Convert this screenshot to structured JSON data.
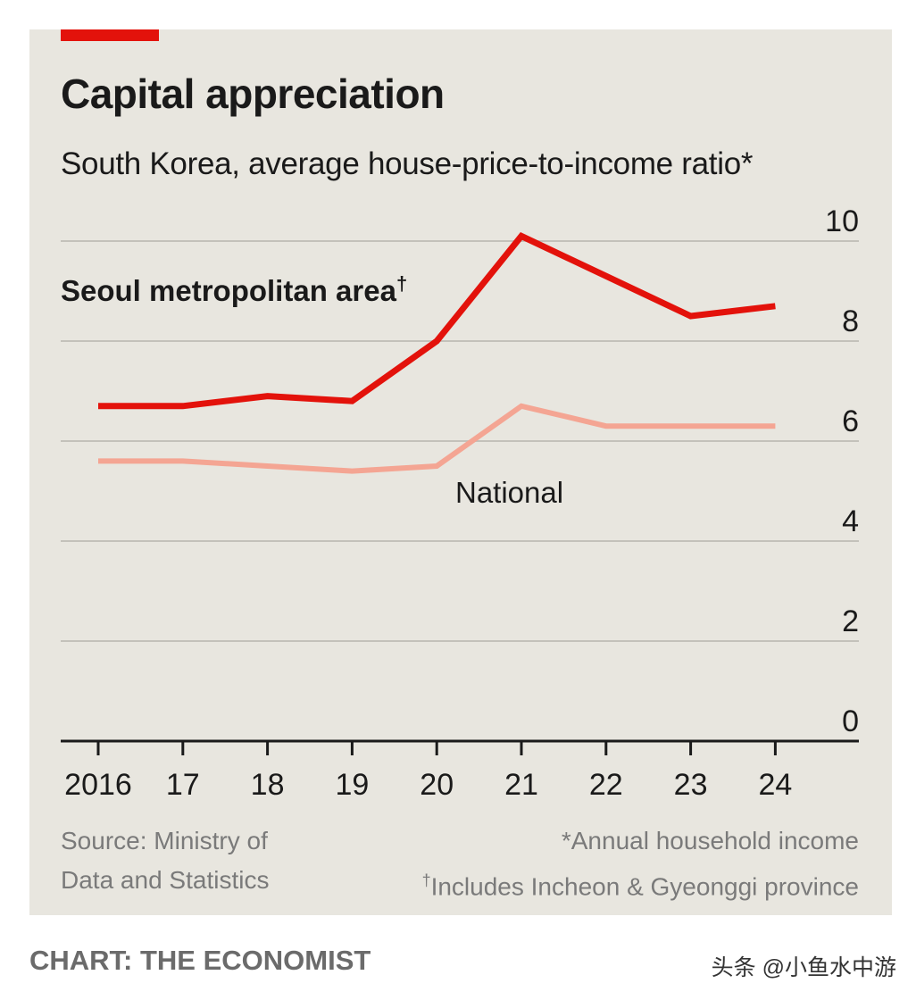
{
  "chart_data": {
    "type": "line",
    "title": "Capital appreciation",
    "subtitle": "South Korea, average house-price-to-income ratio*",
    "categories": [
      "2016",
      "17",
      "18",
      "19",
      "20",
      "21",
      "22",
      "23",
      "24"
    ],
    "ylim": [
      0,
      10
    ],
    "yticks": [
      "10",
      "8",
      "6",
      "4",
      "2",
      "0"
    ],
    "grid": true,
    "series": [
      {
        "name": "Seoul metropolitan area",
        "label_suffix": "†",
        "color": "#e3120b",
        "values": [
          6.7,
          6.7,
          6.9,
          6.8,
          8.0,
          10.1,
          9.3,
          8.5,
          8.7
        ]
      },
      {
        "name": "National",
        "color": "#f4a593",
        "values": [
          5.6,
          5.6,
          5.5,
          5.4,
          5.5,
          6.7,
          6.3,
          6.3,
          6.3
        ]
      }
    ]
  },
  "footer": {
    "source_line1": "Source: Ministry of",
    "source_line2": "Data and Statistics",
    "note1": "*Annual household income",
    "note2_mark": "†",
    "note2": "Includes Incheon & Gyeonggi province"
  },
  "credit": "CHART: THE ECONOMIST",
  "watermark": "头条 @小鱼水中游"
}
